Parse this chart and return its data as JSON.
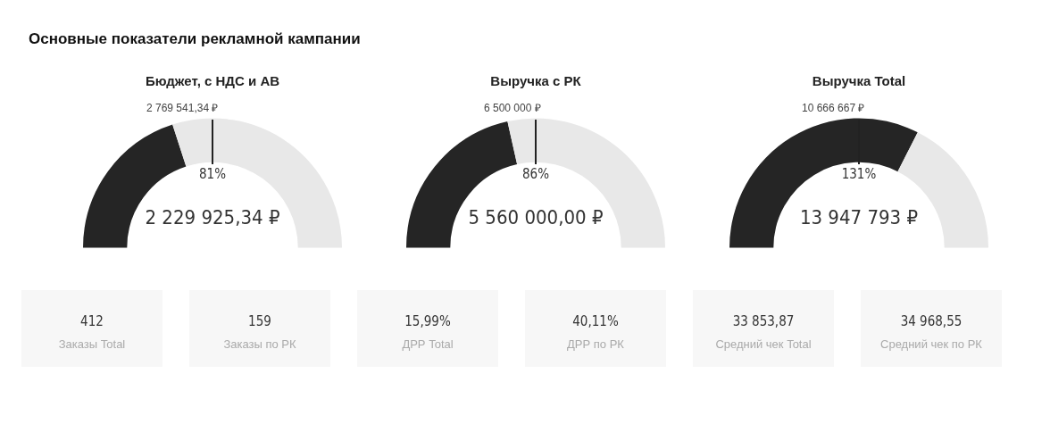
{
  "chart_data": [
    {
      "type": "other",
      "title": "Основные показатели рекламной кампании"
    },
    {
      "type": "donut",
      "title": "Бюджет, с НДС и АВ",
      "categories": [
        null,
        null
      ],
      "values": [
        40,
        60
      ],
      "colors": [
        "#252525",
        "#e8e8e8"
      ],
      "annotations": [
        "2 769 541,34 ₽",
        "81%",
        "2 229 925,34 ₽"
      ]
    },
    {
      "type": "donut",
      "title": "Выручка с РК",
      "categories": [
        null,
        null
      ],
      "values": [
        43,
        57
      ],
      "colors": [
        "#252525",
        "#e8e8e8"
      ],
      "annotations": [
        "6 500 000 ₽",
        "86%",
        "5 560 000,00 ₽"
      ]
    },
    {
      "type": "donut",
      "title": "Выручка Total",
      "categories": [
        null,
        null
      ],
      "values": [
        65,
        35
      ],
      "colors": [
        "#252525",
        "#e8e8e8"
      ],
      "annotations": [
        "10 666 667 ₽",
        "131%",
        "13 947 793 ₽"
      ]
    },
    {
      "type": "other",
      "categories": [
        "Заказы Total",
        "Заказы по РК",
        "ДРР Total",
        "ДРР по РК",
        "Средний чек Total",
        "Средний чек по РК"
      ],
      "value_labels": [
        "412",
        "159",
        "15,99%",
        "40,11%",
        "33 853,87",
        "34 968,55"
      ]
    }
  ]
}
